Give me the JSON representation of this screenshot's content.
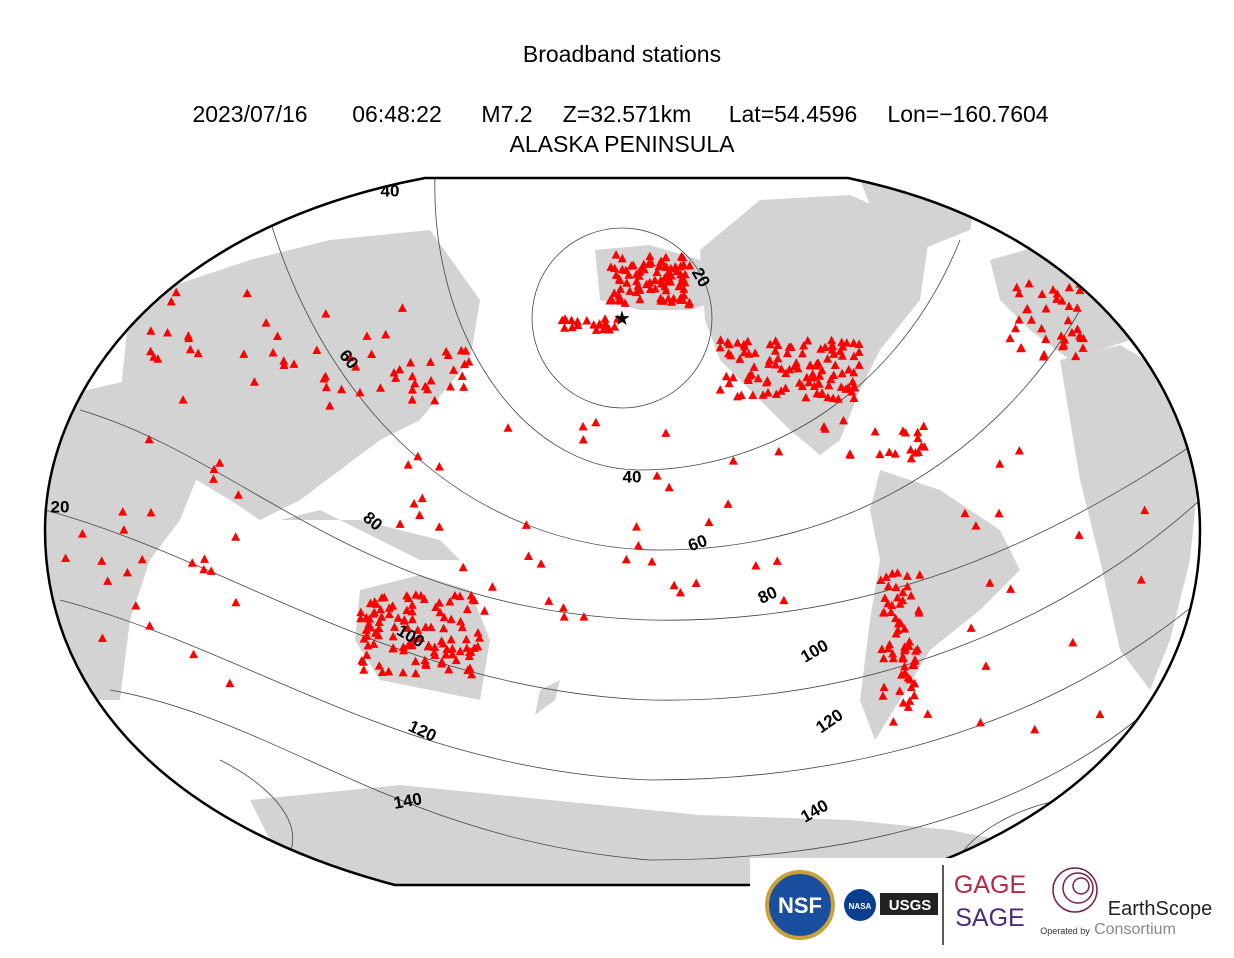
{
  "header": {
    "title": "Broadband stations",
    "date": "2023/07/16",
    "time": "06:48:22",
    "magnitude": "M7.2",
    "depth": "Z=32.571km",
    "lat": "Lat=54.4596",
    "lon": "Lon=−160.7604",
    "region": "ALASKA PENINSULA"
  },
  "contour_labels": [
    "40",
    "60",
    "20",
    "40",
    "60",
    "80",
    "80",
    "100",
    "100",
    "120",
    "120",
    "140",
    "140",
    "20"
  ],
  "logos": {
    "nsf": "NSF",
    "nasa": "NASA",
    "usgs": "USGS",
    "gage": "GAGE",
    "sage": "SAGE",
    "operated": "Operated by",
    "earthscope": "EarthScope",
    "consortium": "Consortium"
  }
}
